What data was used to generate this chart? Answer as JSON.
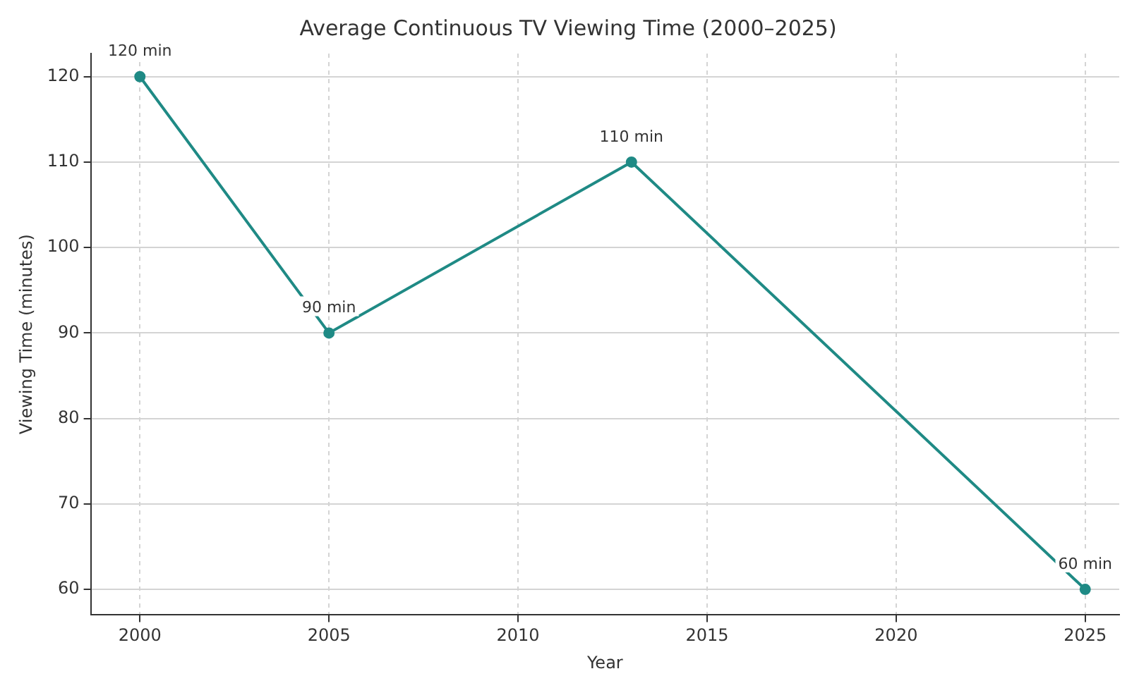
{
  "chart_data": {
    "type": "line",
    "title": "Average Continuous TV Viewing Time (2000–2025)",
    "xlabel": "Year",
    "ylabel": "Viewing Time (minutes)",
    "x": [
      2000,
      2005,
      2013,
      2025
    ],
    "series": [
      {
        "color": "#1f8a85",
        "values": [
          120,
          90,
          110,
          60
        ],
        "value_labels": [
          "120 min",
          "90 min",
          "110 min",
          "60 min"
        ]
      }
    ],
    "xlim": [
      1998.7,
      2025.9
    ],
    "xticks": [
      2000,
      2005,
      2010,
      2015,
      2020,
      2025
    ],
    "ylim": [
      57,
      122.7
    ],
    "yticks": [
      60,
      70,
      80,
      90,
      100,
      110,
      120
    ],
    "grid": true,
    "marker": "circle",
    "line_style": "solid",
    "legend": false
  }
}
